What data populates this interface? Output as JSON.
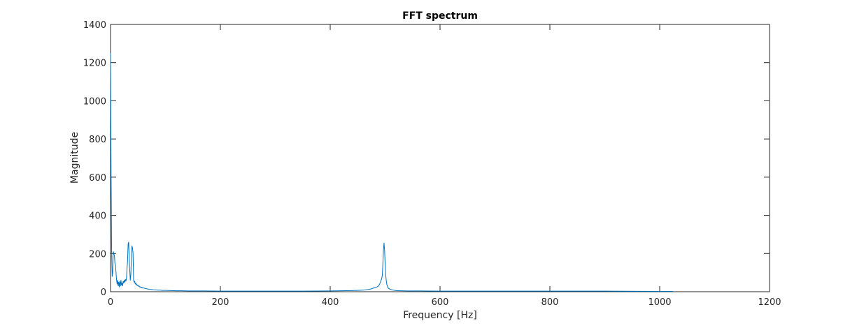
{
  "chart_data": {
    "type": "line",
    "title": "FFT spectrum",
    "xlabel": "Frequency [Hz]",
    "ylabel": "Magnitude",
    "xlim": [
      0,
      1200
    ],
    "ylim": [
      0,
      1400
    ],
    "xticks": [
      0,
      200,
      400,
      600,
      800,
      1000,
      1200
    ],
    "yticks": [
      0,
      200,
      400,
      600,
      800,
      1000,
      1200,
      1400
    ],
    "grid": false,
    "line_color": "#0072BD",
    "series": [
      {
        "x": [
          0,
          1,
          2,
          3,
          4,
          5,
          6,
          7,
          8,
          9,
          10,
          11,
          12,
          13,
          14,
          15,
          16,
          17,
          18,
          19,
          20,
          21,
          22,
          23,
          24,
          25,
          26,
          27,
          28,
          29,
          30,
          31,
          32,
          33,
          34,
          35,
          36,
          37,
          38,
          39,
          40,
          41,
          42,
          43,
          44,
          45,
          46,
          47,
          48,
          49,
          50,
          51,
          52,
          53,
          54,
          55,
          56,
          57,
          58,
          60,
          62,
          64,
          66,
          68,
          70,
          72,
          75,
          78,
          82,
          86,
          90,
          95,
          100,
          110,
          120,
          130,
          140,
          150,
          170,
          200,
          250,
          300,
          350,
          400,
          440,
          460,
          470,
          475,
          480,
          485,
          488,
          490,
          492,
          494,
          495,
          496,
          497,
          498,
          499,
          500,
          501,
          502,
          503,
          504,
          505,
          506,
          508,
          510,
          512,
          515,
          520,
          525,
          530,
          540,
          560,
          600,
          700,
          800,
          900,
          1000,
          1024
        ],
        "y": [
          1250,
          620,
          210,
          80,
          100,
          210,
          200,
          190,
          150,
          140,
          100,
          60,
          40,
          60,
          30,
          50,
          25,
          55,
          30,
          60,
          35,
          45,
          30,
          55,
          45,
          60,
          50,
          65,
          55,
          70,
          120,
          160,
          250,
          260,
          180,
          110,
          60,
          90,
          180,
          240,
          230,
          200,
          60,
          50,
          55,
          40,
          45,
          35,
          38,
          32,
          34,
          28,
          30,
          25,
          26,
          22,
          24,
          20,
          22,
          19,
          18,
          17,
          15,
          14,
          13,
          12,
          11,
          10,
          9,
          8,
          8,
          7,
          7,
          6,
          5,
          5,
          4,
          4,
          4,
          3,
          3,
          3,
          3,
          4,
          6,
          8,
          12,
          15,
          20,
          25,
          30,
          40,
          55,
          70,
          90,
          150,
          220,
          255,
          220,
          150,
          90,
          60,
          40,
          30,
          22,
          18,
          15,
          12,
          10,
          8,
          6,
          5,
          5,
          4,
          4,
          3,
          3,
          3,
          3,
          2,
          2
        ]
      }
    ]
  }
}
